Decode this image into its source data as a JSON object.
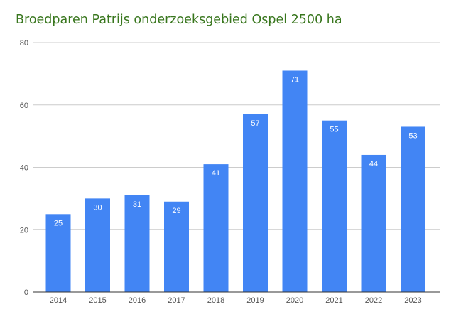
{
  "chart_data": {
    "type": "bar",
    "title": "Broedparen Patrijs onderzoeksgebied Ospel 2500 ha",
    "categories": [
      "2014",
      "2015",
      "2016",
      "2017",
      "2018",
      "2019",
      "2020",
      "2021",
      "2022",
      "2023"
    ],
    "values": [
      25,
      30,
      31,
      29,
      41,
      57,
      71,
      55,
      44,
      53
    ],
    "xlabel": "",
    "ylabel": "",
    "ylim": [
      0,
      80
    ],
    "yticks": [
      0,
      20,
      40,
      60,
      80
    ],
    "grid": true,
    "legend": "none",
    "data_labels": true,
    "colors": {
      "bar": "#4285f4",
      "title": "#38761d",
      "grid": "#cccccc",
      "axis": "#333333",
      "data_label": "#ffffff"
    }
  }
}
